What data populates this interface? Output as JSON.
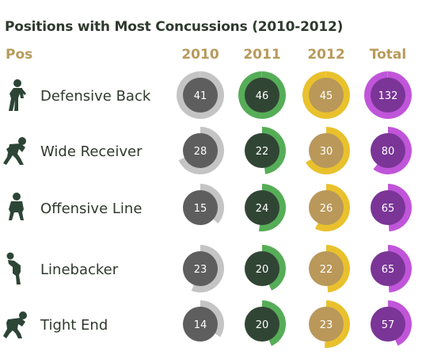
{
  "title": "Positions with Most Concussions (2010-2012)",
  "header": {
    "pos": "Pos"
  },
  "chart_data": {
    "type": "table",
    "title": "Positions with Most Concussions (2010-2012)",
    "columns": [
      "2010",
      "2011",
      "2012",
      "Total"
    ],
    "rows": [
      {
        "position": "Defensive Back",
        "icon": "defensive-back-icon",
        "values": [
          41,
          46,
          45,
          132
        ]
      },
      {
        "position": "Wide Receiver",
        "icon": "wide-receiver-icon",
        "values": [
          28,
          22,
          30,
          80
        ]
      },
      {
        "position": "Offensive Line",
        "icon": "offensive-line-icon",
        "values": [
          15,
          24,
          26,
          65
        ]
      },
      {
        "position": "Linebacker",
        "icon": "linebacker-icon",
        "values": [
          23,
          20,
          22,
          65
        ]
      },
      {
        "position": "Tight End",
        "icon": "tight-end-icon",
        "values": [
          14,
          20,
          23,
          57
        ]
      }
    ],
    "colors": {
      "2010": {
        "ring": "#c4c4c4",
        "fill": "#5e5e5e"
      },
      "2011": {
        "ring": "#56ad57",
        "fill": "#314535"
      },
      "2012": {
        "ring": "#e9c12d",
        "fill": "#b9985a"
      },
      "Total": {
        "ring": "#c055d9",
        "fill": "#7a3597"
      },
      "text": "#2f3a2e",
      "header": "#b79a5b",
      "icon": "#2c4536"
    }
  }
}
